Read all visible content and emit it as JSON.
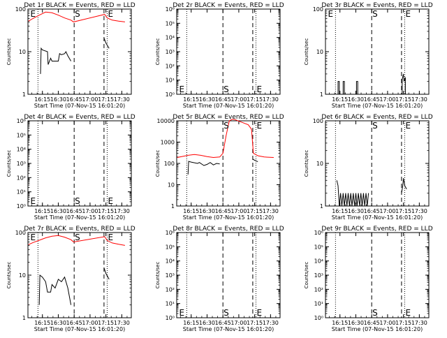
{
  "xlabel": "Start Time (07-Nov-15 16:01:20)",
  "ylabel": "Counts/sec",
  "colors": {
    "events": "#000000",
    "lld": "#ff0000"
  },
  "chart_data": [
    {
      "type": "line",
      "title": "Det 1r BLACK = Events, RED = LLD",
      "scale": "log",
      "ylim": [
        1,
        100
      ],
      "ytick_labels": [
        "1",
        "10",
        "100"
      ],
      "ytick_values": [
        1,
        10,
        100
      ],
      "xtick_labels": [
        "16:15",
        "16:30",
        "16:45",
        "17:00",
        "17:15",
        "17:30"
      ],
      "xtick_values": [
        16.25,
        16.5,
        16.75,
        17.0,
        17.25,
        17.5
      ],
      "xlim": [
        16.022,
        17.65
      ],
      "markers": [
        {
          "label": "E",
          "x": 16.05,
          "pos": "top"
        },
        {
          "label": "S",
          "x": 16.75,
          "pos": "top"
        },
        {
          "label": "E",
          "x": 17.27,
          "pos": "top"
        }
      ],
      "dashed": [
        16.75,
        17.22
      ],
      "dotted": [
        16.18,
        17.27
      ],
      "series": [
        {
          "color": "red",
          "x": [
            16.03,
            16.1,
            16.2,
            16.3,
            16.4,
            16.5,
            16.6,
            16.7,
            16.74,
            17.23,
            17.27,
            17.35,
            17.45,
            17.55
          ],
          "values": [
            52,
            60,
            72,
            85,
            82,
            72,
            62,
            55,
            50,
            75,
            62,
            55,
            52,
            50
          ]
        },
        {
          "color": "black",
          "x": [
            16.22,
            16.23,
            16.25,
            16.33,
            16.34,
            16.38,
            16.4,
            16.5,
            16.52,
            16.55,
            16.6,
            16.62,
            16.65,
            16.7
          ],
          "values": [
            3,
            12,
            11,
            10,
            5,
            7,
            6,
            6,
            9,
            8.5,
            9,
            10,
            8,
            6
          ]
        },
        {
          "color": "black",
          "x": [
            17.22,
            17.25,
            17.3
          ],
          "values": [
            21,
            16,
            12
          ]
        }
      ]
    },
    {
      "type": "line",
      "title": "Det 2r BLACK = Events, RED = LLD",
      "scale": "log",
      "ylim": [
        1,
        1000000
      ],
      "ytick_labels": [
        "10⁰",
        "10¹",
        "10²",
        "10³",
        "10⁴",
        "10⁵",
        "10⁶"
      ],
      "ytick_values": [
        1,
        10,
        100,
        1000,
        10000,
        100000,
        1000000
      ],
      "xtick_labels": [
        "16:15",
        "16:30",
        "16:45",
        "17:00",
        "17:15",
        "17:30"
      ],
      "xtick_values": [
        16.25,
        16.5,
        16.75,
        17.0,
        17.25,
        17.5
      ],
      "xlim": [
        16.022,
        17.65
      ],
      "markers": [
        {
          "label": "E",
          "x": 16.05,
          "pos": "bottom"
        },
        {
          "label": "S",
          "x": 16.75,
          "pos": "bottom"
        },
        {
          "label": "E",
          "x": 17.27,
          "pos": "bottom"
        }
      ],
      "dashed": [
        16.75,
        17.22
      ],
      "dotted": [
        16.18,
        17.27
      ],
      "series": []
    },
    {
      "type": "line",
      "title": "Det 3r BLACK = Events, RED = LLD",
      "scale": "log",
      "ylim": [
        1,
        100
      ],
      "ytick_labels": [
        "1",
        "10",
        "100"
      ],
      "ytick_values": [
        1,
        10,
        100
      ],
      "xtick_labels": [
        "16:15",
        "16:30",
        "16:45",
        "17:00",
        "17:15",
        "17:30"
      ],
      "xtick_values": [
        16.25,
        16.5,
        16.75,
        17.0,
        17.25,
        17.5
      ],
      "xlim": [
        16.022,
        17.65
      ],
      "markers": [
        {
          "label": "E",
          "x": 16.05,
          "pos": "top"
        },
        {
          "label": "S",
          "x": 16.75,
          "pos": "top"
        },
        {
          "label": "E",
          "x": 17.27,
          "pos": "top"
        }
      ],
      "dashed": [
        16.75,
        17.22
      ],
      "dotted": [
        16.18,
        17.27
      ],
      "series": [
        {
          "color": "black",
          "x": [
            16.22,
            16.22,
            16.24,
            16.24
          ],
          "values": [
            1,
            2,
            2,
            1
          ]
        },
        {
          "color": "black",
          "x": [
            16.3,
            16.3,
            16.32,
            16.32
          ],
          "values": [
            1,
            2,
            2,
            1
          ]
        },
        {
          "color": "black",
          "x": [
            16.51,
            16.51,
            16.53,
            16.53
          ],
          "values": [
            1,
            2,
            2,
            1
          ]
        },
        {
          "color": "black",
          "x": [
            17.23,
            17.23,
            17.25,
            17.26,
            17.28,
            17.28
          ],
          "values": [
            1,
            2.2,
            3,
            2,
            2.5,
            1
          ]
        }
      ]
    },
    {
      "type": "line",
      "title": "Det 4r BLACK = Events, RED = LLD",
      "scale": "log",
      "ylim": [
        1,
        1000000
      ],
      "ytick_labels": [
        "10⁰",
        "10¹",
        "10²",
        "10³",
        "10⁴",
        "10⁵",
        "10⁶"
      ],
      "ytick_values": [
        1,
        10,
        100,
        1000,
        10000,
        100000,
        1000000
      ],
      "xtick_labels": [
        "16:15",
        "16:30",
        "16:45",
        "17:00",
        "17:15",
        "17:30"
      ],
      "xtick_values": [
        16.25,
        16.5,
        16.75,
        17.0,
        17.25,
        17.5
      ],
      "xlim": [
        16.022,
        17.65
      ],
      "markers": [
        {
          "label": "E",
          "x": 16.05,
          "pos": "bottom"
        },
        {
          "label": "S",
          "x": 16.75,
          "pos": "bottom"
        },
        {
          "label": "E",
          "x": 17.27,
          "pos": "bottom"
        }
      ],
      "dashed": [
        16.75,
        17.22
      ],
      "dotted": [
        16.18,
        17.27
      ],
      "series": []
    },
    {
      "type": "line",
      "title": "Det 5r BLACK = Events, RED = LLD",
      "scale": "log",
      "ylim": [
        1,
        10000
      ],
      "ytick_labels": [
        "1",
        "10",
        "100",
        "1000",
        "10000"
      ],
      "ytick_values": [
        1,
        10,
        100,
        1000,
        10000
      ],
      "xtick_labels": [
        "16:15",
        "16:30",
        "16:45",
        "17:00",
        "17:15",
        "17:30"
      ],
      "xtick_values": [
        16.25,
        16.5,
        16.75,
        17.0,
        17.25,
        17.5
      ],
      "xlim": [
        16.022,
        17.65
      ],
      "markers": [
        {
          "label": "S",
          "x": 16.75,
          "pos": "top"
        },
        {
          "label": "E",
          "x": 17.27,
          "pos": "top"
        }
      ],
      "dashed": [
        16.75,
        17.22
      ],
      "dotted": [
        16.18,
        17.27
      ],
      "series": [
        {
          "color": "red",
          "x": [
            16.03,
            16.1,
            16.2,
            16.3,
            16.4,
            16.5,
            16.6,
            16.7,
            16.75,
            16.8,
            16.85,
            16.9,
            16.95,
            17.05,
            17.15,
            17.2,
            17.23,
            17.3,
            17.4,
            17.55
          ],
          "values": [
            190,
            210,
            240,
            260,
            240,
            210,
            190,
            200,
            300,
            2000,
            10000,
            12000,
            11000,
            8500,
            6500,
            4000,
            300,
            230,
            200,
            190
          ]
        },
        {
          "color": "black",
          "x": [
            16.2,
            16.21,
            16.25,
            16.35,
            16.38,
            16.45,
            16.5,
            16.55,
            16.6,
            16.65,
            16.7
          ],
          "values": [
            30,
            125,
            115,
            100,
            110,
            80,
            90,
            110,
            85,
            100,
            95
          ]
        },
        {
          "color": "black",
          "x": [
            17.22,
            17.25,
            17.3
          ],
          "values": [
            160,
            140,
            120
          ]
        }
      ]
    },
    {
      "type": "line",
      "title": "Det 6r BLACK = Events, RED = LLD",
      "scale": "log",
      "ylim": [
        1,
        100
      ],
      "ytick_labels": [
        "1",
        "10",
        "100"
      ],
      "ytick_values": [
        1,
        10,
        100
      ],
      "xtick_labels": [
        "16:15",
        "16:30",
        "16:45",
        "17:00",
        "17:15",
        "17:30"
      ],
      "xtick_values": [
        16.25,
        16.5,
        16.75,
        17.0,
        17.25,
        17.5
      ],
      "xlim": [
        16.022,
        17.65
      ],
      "markers": [
        {
          "label": "S",
          "x": 16.75,
          "pos": "top"
        },
        {
          "label": "E",
          "x": 17.27,
          "pos": "top"
        }
      ],
      "dashed": [
        16.75,
        17.22
      ],
      "dotted": [
        16.18,
        17.27
      ],
      "series": [
        {
          "color": "black",
          "x": [
            16.2,
            16.22,
            16.24,
            16.26,
            16.28,
            16.3,
            16.32,
            16.34,
            16.36,
            16.38,
            16.4,
            16.42,
            16.44,
            16.46,
            16.48,
            16.5,
            16.52,
            16.54,
            16.56,
            16.58,
            16.6,
            16.62,
            16.64,
            16.66,
            16.68,
            16.7
          ],
          "values": [
            4,
            3,
            1,
            2,
            1,
            2,
            1,
            2,
            1,
            2,
            1,
            2,
            1,
            2,
            1,
            2,
            1,
            2,
            1,
            2,
            1,
            2,
            1,
            2,
            1,
            2
          ]
        },
        {
          "color": "black",
          "x": [
            17.22,
            17.24,
            17.25,
            17.27,
            17.3
          ],
          "values": [
            2,
            3,
            4.5,
            3,
            2.5
          ]
        }
      ]
    },
    {
      "type": "line",
      "title": "Det 7r BLACK = Events, RED = LLD",
      "scale": "log",
      "ylim": [
        1,
        100
      ],
      "ytick_labels": [
        "1",
        "10",
        "100"
      ],
      "ytick_values": [
        1,
        10,
        100
      ],
      "xtick_labels": [
        "16:15",
        "16:30",
        "16:45",
        "17:00",
        "17:15",
        "17:30"
      ],
      "xtick_values": [
        16.25,
        16.5,
        16.75,
        17.0,
        17.25,
        17.5
      ],
      "xlim": [
        16.022,
        17.65
      ],
      "markers": [
        {
          "label": "E",
          "x": 16.05,
          "pos": "top"
        },
        {
          "label": "S",
          "x": 16.75,
          "pos": "top"
        },
        {
          "label": "E",
          "x": 17.27,
          "pos": "top"
        }
      ],
      "dashed": [
        16.75,
        17.22
      ],
      "dotted": [
        16.18,
        17.27
      ],
      "series": [
        {
          "color": "red",
          "x": [
            16.03,
            16.1,
            16.2,
            16.3,
            16.4,
            16.5,
            16.6,
            16.7,
            16.74,
            17.23,
            17.27,
            17.35,
            17.45,
            17.55
          ],
          "values": [
            52,
            58,
            66,
            75,
            82,
            85,
            78,
            68,
            60,
            80,
            65,
            57,
            53,
            50
          ]
        },
        {
          "color": "black",
          "x": [
            16.2,
            16.21,
            16.25,
            16.3,
            16.33,
            16.38,
            16.4,
            16.45,
            16.5,
            16.55,
            16.6,
            16.65,
            16.7
          ],
          "values": [
            2,
            10,
            9,
            7,
            4,
            4,
            6,
            5,
            8,
            7,
            9,
            5,
            2
          ]
        },
        {
          "color": "black",
          "x": [
            17.22,
            17.25,
            17.3
          ],
          "values": [
            15,
            11,
            8
          ]
        }
      ]
    },
    {
      "type": "line",
      "title": "Det 8r BLACK = Events, RED = LLD",
      "scale": "log",
      "ylim": [
        1,
        1000000
      ],
      "ytick_labels": [
        "10⁰",
        "10¹",
        "10²",
        "10³",
        "10⁴",
        "10⁵",
        "10⁶"
      ],
      "ytick_values": [
        1,
        10,
        100,
        1000,
        10000,
        100000,
        1000000
      ],
      "xtick_labels": [
        "16:15",
        "16:30",
        "16:45",
        "17:00",
        "17:15",
        "17:30"
      ],
      "xtick_values": [
        16.25,
        16.5,
        16.75,
        17.0,
        17.25,
        17.5
      ],
      "xlim": [
        16.022,
        17.65
      ],
      "markers": [
        {
          "label": "E",
          "x": 16.05,
          "pos": "bottom"
        },
        {
          "label": "S",
          "x": 16.75,
          "pos": "bottom"
        },
        {
          "label": "E",
          "x": 17.27,
          "pos": "bottom"
        }
      ],
      "dashed": [
        16.75,
        17.22
      ],
      "dotted": [
        16.18,
        17.27
      ],
      "series": []
    },
    {
      "type": "line",
      "title": "Det 9r BLACK = Events, RED = LLD",
      "scale": "log",
      "ylim": [
        1,
        1000000
      ],
      "ytick_labels": [
        "10⁰",
        "10¹",
        "10²",
        "10³",
        "10⁴",
        "10⁵",
        "10⁶"
      ],
      "ytick_values": [
        1,
        10,
        100,
        1000,
        10000,
        100000,
        1000000
      ],
      "xtick_labels": [
        "16:15",
        "16:30",
        "16:45",
        "17:00",
        "17:15",
        "17:30"
      ],
      "xtick_values": [
        16.25,
        16.5,
        16.75,
        17.0,
        17.25,
        17.5
      ],
      "xlim": [
        16.022,
        17.65
      ],
      "markers": [
        {
          "label": "S",
          "x": 16.75,
          "pos": "bottom"
        },
        {
          "label": "E",
          "x": 17.27,
          "pos": "bottom"
        }
      ],
      "dashed": [
        16.75,
        17.22
      ],
      "dotted": [
        16.18,
        17.27
      ],
      "series": []
    }
  ]
}
